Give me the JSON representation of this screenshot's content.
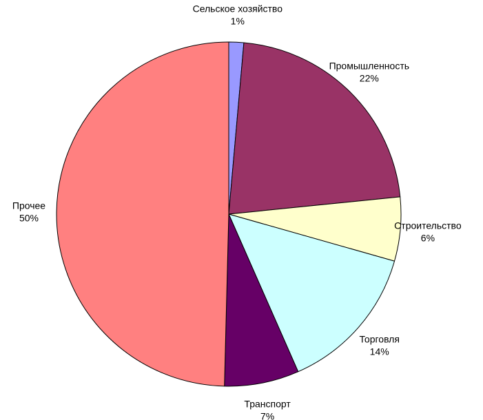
{
  "chart_data": {
    "type": "pie",
    "title": "",
    "start_angle_deg": 0,
    "direction": "clockwise",
    "slices": [
      {
        "name": "Сельское хозяйство",
        "value": 1.4,
        "percent_label": "1%",
        "color": "#9999ff"
      },
      {
        "name": "Промышленность",
        "value": 22,
        "percent_label": "22%",
        "color": "#993366"
      },
      {
        "name": "Строительство",
        "value": 6,
        "percent_label": "6%",
        "color": "#ffffcc"
      },
      {
        "name": "Торговля",
        "value": 14,
        "percent_label": "14%",
        "color": "#ccffff"
      },
      {
        "name": "Транспорт",
        "value": 7,
        "percent_label": "7%",
        "color": "#660066"
      },
      {
        "name": "Прочее",
        "value": 49.6,
        "percent_label": "50%",
        "color": "#ff8080"
      }
    ]
  }
}
